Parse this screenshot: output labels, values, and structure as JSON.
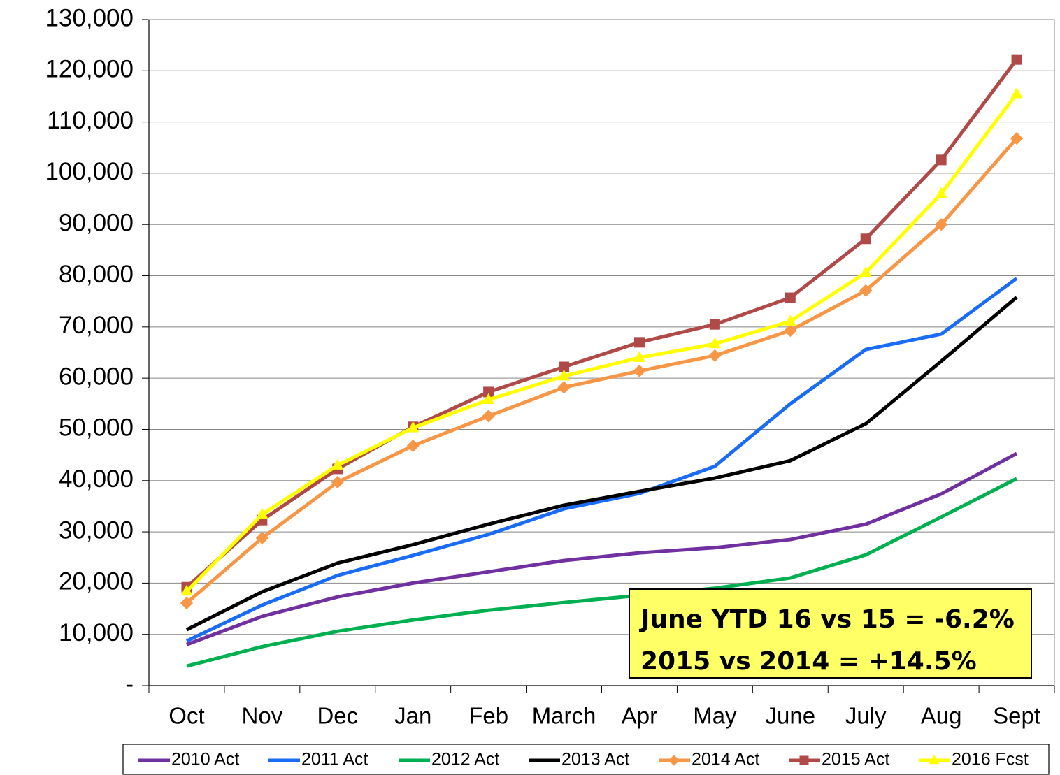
{
  "chart_data": {
    "type": "line",
    "categories": [
      "Oct",
      "Nov",
      "Dec",
      "Jan",
      "Feb",
      "March",
      "Apr",
      "May",
      "June",
      "July",
      "Aug",
      "Sept"
    ],
    "series": [
      {
        "name": "2010 Act",
        "color": "#7030a0",
        "marker": "none",
        "values": [
          8000,
          13500,
          17300,
          20000,
          22200,
          24400,
          25900,
          26900,
          28500,
          31500,
          37400,
          45300
        ]
      },
      {
        "name": "2011 Act",
        "color": "#1a6cf5",
        "marker": "none",
        "values": [
          8700,
          15700,
          21500,
          25400,
          29500,
          34500,
          37500,
          42800,
          55000,
          65600,
          68600,
          79500
        ]
      },
      {
        "name": "2012 Act",
        "color": "#00b050",
        "marker": "none",
        "values": [
          3800,
          7600,
          10600,
          12800,
          14700,
          16200,
          17600,
          19000,
          21000,
          25500,
          32900,
          40400
        ]
      },
      {
        "name": "2013 Act",
        "color": "#000000",
        "marker": "none",
        "values": [
          10900,
          18300,
          23900,
          27500,
          31500,
          35200,
          37900,
          40500,
          43900,
          51100,
          63300,
          75800
        ]
      },
      {
        "name": "2014 Act",
        "color": "#f79646",
        "marker": "diamond",
        "values": [
          16100,
          28800,
          39700,
          46800,
          52600,
          58200,
          61400,
          64400,
          69300,
          77100,
          90000,
          106800
        ]
      },
      {
        "name": "2015 Act",
        "color": "#b04a48",
        "marker": "square",
        "values": [
          19200,
          32300,
          42300,
          50500,
          57300,
          62200,
          67000,
          70500,
          75700,
          87200,
          102600,
          122200
        ]
      },
      {
        "name": "2016 Fcst",
        "color": "#ffff00",
        "marker": "triangle",
        "values": [
          18400,
          33400,
          43000,
          50300,
          55800,
          60400,
          64000,
          66700,
          71100,
          80600,
          96000,
          115500
        ]
      }
    ],
    "ylim": [
      0,
      130000
    ],
    "yticks": [
      {
        "value": 0,
        "label": "-"
      },
      {
        "value": 10000,
        "label": "10,000"
      },
      {
        "value": 20000,
        "label": "20,000"
      },
      {
        "value": 30000,
        "label": "30,000"
      },
      {
        "value": 40000,
        "label": "40,000"
      },
      {
        "value": 50000,
        "label": "50,000"
      },
      {
        "value": 60000,
        "label": "60,000"
      },
      {
        "value": 70000,
        "label": "70,000"
      },
      {
        "value": 80000,
        "label": "80,000"
      },
      {
        "value": 90000,
        "label": "90,000"
      },
      {
        "value": 100000,
        "label": "100,000"
      },
      {
        "value": 110000,
        "label": "110,000"
      },
      {
        "value": 120000,
        "label": "120,000"
      },
      {
        "value": 130000,
        "label": "130,000"
      }
    ],
    "grid": true,
    "legend": "bottom",
    "annotations": [
      "June YTD 16 vs 15 = -6.2%",
      "2015 vs 2014 = +14.5%"
    ]
  }
}
